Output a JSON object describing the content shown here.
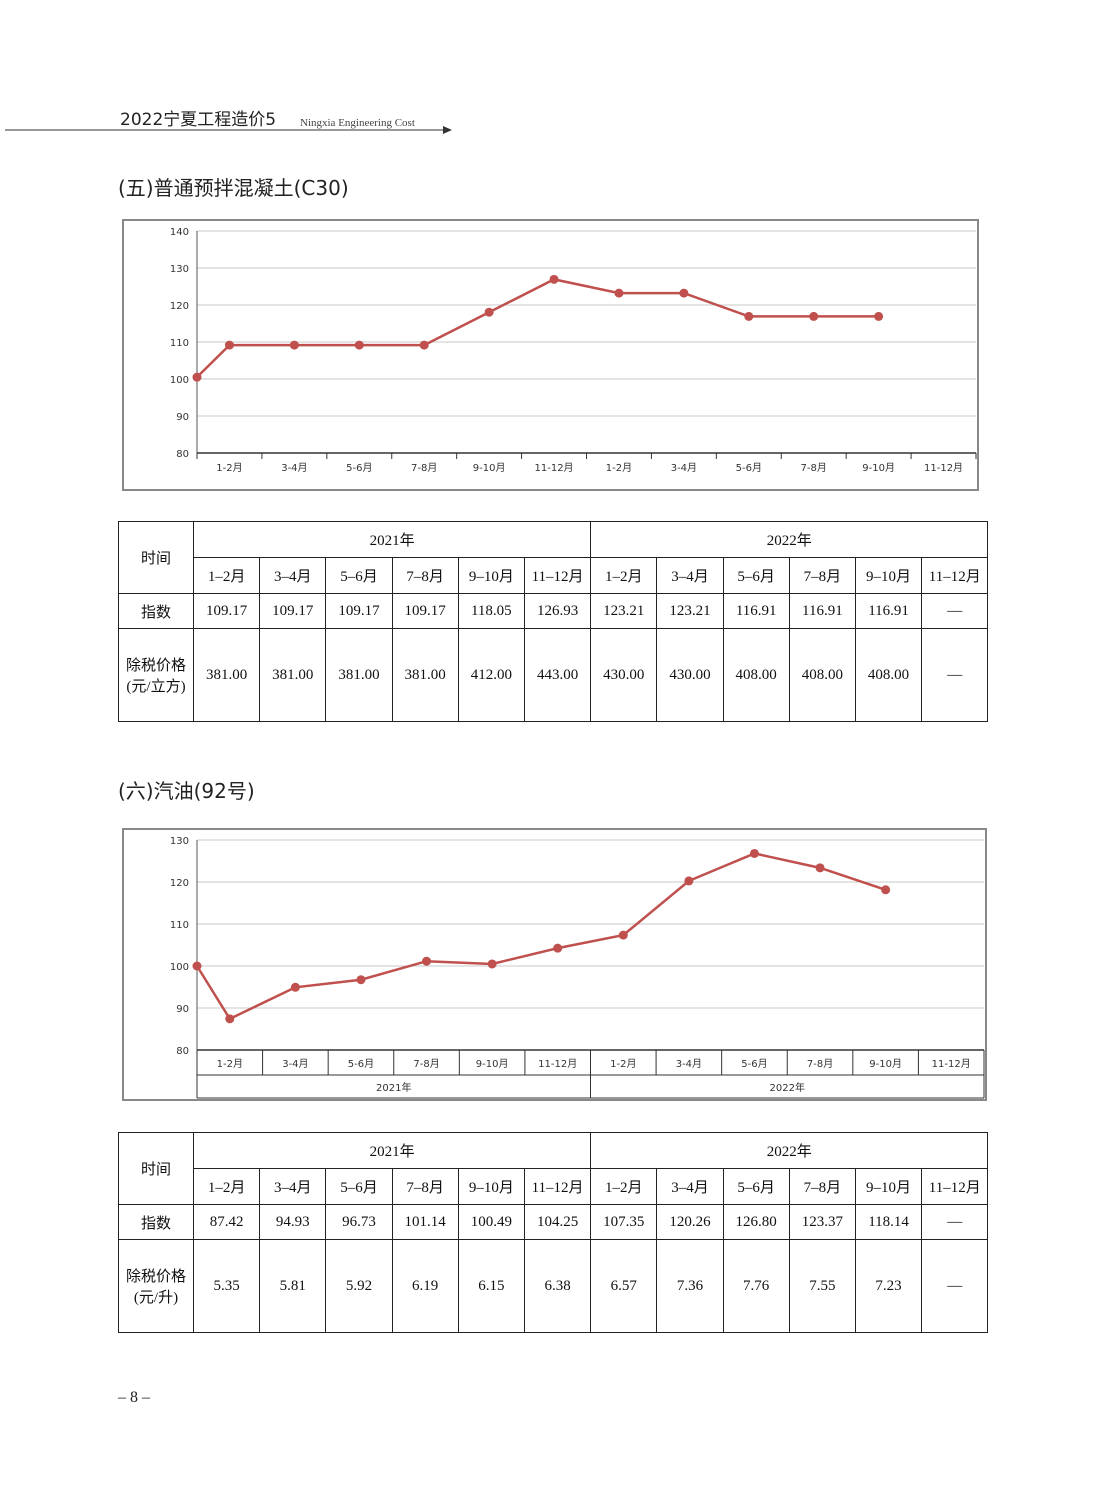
{
  "header": {
    "title": "2022宁夏工程造价5",
    "subtitle": "Ningxia Engineering Cost"
  },
  "page_number": "– 8 –",
  "sections": [
    {
      "title": "(五)普通预拌混凝土(C30)",
      "table": {
        "corner": "时间",
        "years": [
          "2021年",
          "2022年"
        ],
        "months": [
          "1–2月",
          "3–4月",
          "5–6月",
          "7–8月",
          "9–10月",
          "11–12月",
          "1–2月",
          "3–4月",
          "5–6月",
          "7–8月",
          "9–10月",
          "11–12月"
        ],
        "rows": [
          {
            "label": [
              "指数"
            ],
            "values": [
              "109.17",
              "109.17",
              "109.17",
              "109.17",
              "118.05",
              "126.93",
              "123.21",
              "123.21",
              "116.91",
              "116.91",
              "116.91",
              "—"
            ]
          },
          {
            "label": [
              "除税价格",
              "(元/立方)"
            ],
            "values": [
              "381.00",
              "381.00",
              "381.00",
              "381.00",
              "412.00",
              "443.00",
              "430.00",
              "430.00",
              "408.00",
              "408.00",
              "408.00",
              "—"
            ]
          }
        ]
      }
    },
    {
      "title": "(六)汽油(92号)",
      "table": {
        "corner": "时间",
        "years": [
          "2021年",
          "2022年"
        ],
        "months": [
          "1–2月",
          "3–4月",
          "5–6月",
          "7–8月",
          "9–10月",
          "11–12月",
          "1–2月",
          "3–4月",
          "5–6月",
          "7–8月",
          "9–10月",
          "11–12月"
        ],
        "rows": [
          {
            "label": [
              "指数"
            ],
            "values": [
              "87.42",
              "94.93",
              "96.73",
              "101.14",
              "100.49",
              "104.25",
              "107.35",
              "120.26",
              "126.80",
              "123.37",
              "118.14",
              "—"
            ]
          },
          {
            "label": [
              "除税价格",
              "(元/升)"
            ],
            "values": [
              "5.35",
              "5.81",
              "5.92",
              "6.19",
              "6.15",
              "6.38",
              "6.57",
              "7.36",
              "7.76",
              "7.55",
              "7.23",
              "—"
            ]
          }
        ]
      }
    }
  ],
  "chart_data": [
    {
      "type": "line",
      "color": "#c0504d",
      "grid": true,
      "categories": [
        null,
        "1-2月",
        "3-4月",
        "5-6月",
        "7-8月",
        "9-10月",
        "11-12月",
        "1-2月",
        "3-4月",
        "5-6月",
        "7-8月",
        "9-10月",
        "11-12月"
      ],
      "values": [
        100.5,
        109.17,
        109.17,
        109.17,
        109.17,
        118.05,
        126.93,
        123.21,
        123.21,
        116.91,
        116.91,
        116.91,
        null
      ],
      "ylim": [
        80,
        140
      ],
      "yticks": [
        80,
        90,
        100,
        110,
        120,
        130,
        140
      ]
    },
    {
      "type": "line",
      "color": "#c0504d",
      "grid": true,
      "categories": [
        null,
        "1-2月",
        "3-4月",
        "5-6月",
        "7-8月",
        "9-10月",
        "11-12月",
        "1-2月",
        "3-4月",
        "5-6月",
        "7-8月",
        "9-10月",
        "11-12月"
      ],
      "values": [
        100,
        87.42,
        94.93,
        96.73,
        101.14,
        100.49,
        104.25,
        107.35,
        120.26,
        126.8,
        123.37,
        118.14,
        null
      ],
      "groups": [
        "2021年",
        "2022年"
      ],
      "ylim": [
        80,
        130
      ],
      "yticks": [
        80,
        90,
        100,
        110,
        120,
        130
      ]
    }
  ]
}
